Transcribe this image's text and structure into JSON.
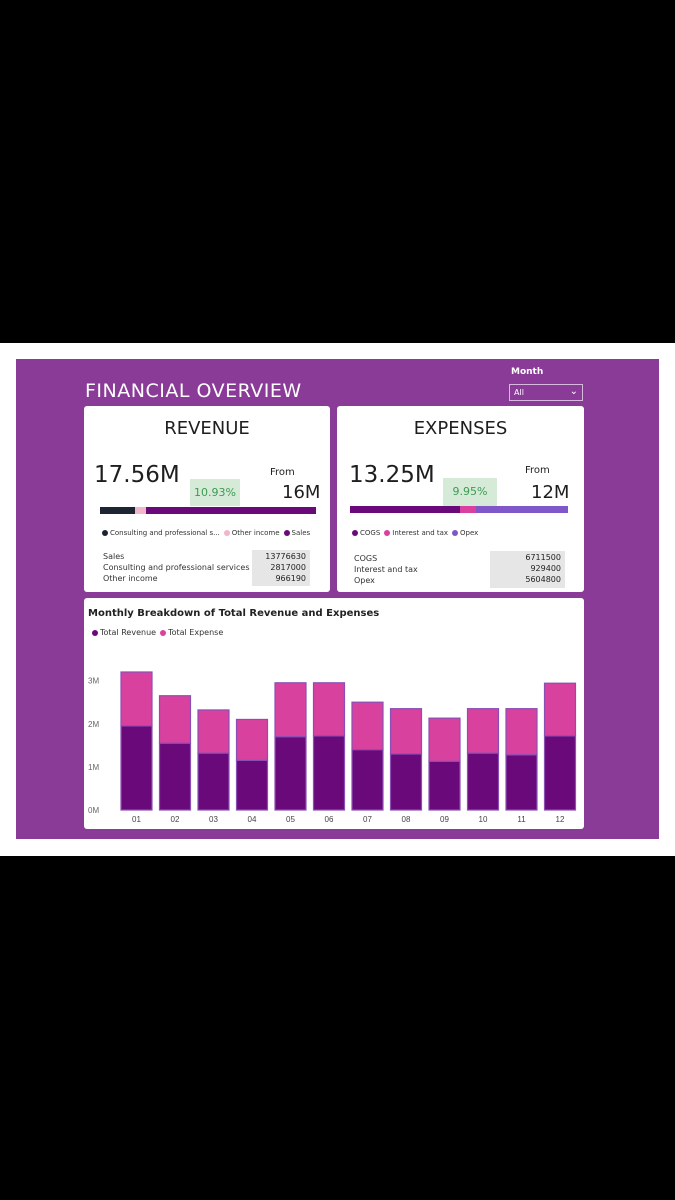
{
  "header": {
    "title": "FINANCIAL OVERVIEW"
  },
  "filter": {
    "label": "Month",
    "value": "All"
  },
  "revenue": {
    "title": "REVENUE",
    "value": "17.56M",
    "change": "10.93%",
    "from_label": "From",
    "from_value": "16M",
    "legend": [
      {
        "label": "Consulting and professional s...",
        "color": "#1e2532"
      },
      {
        "label": "Other income",
        "color": "#f1b6c9"
      },
      {
        "label": "Sales",
        "color": "#6a0a7a"
      }
    ],
    "breakdown": [
      {
        "label": "Sales",
        "value": "13776630"
      },
      {
        "label": "Consulting and professional services",
        "value": "2817000"
      },
      {
        "label": "Other income",
        "value": "966190"
      }
    ],
    "bar_fractions": [
      0.16,
      0.055,
      0.785
    ]
  },
  "expenses": {
    "title": "EXPENSES",
    "value": "13.25M",
    "change": "9.95%",
    "from_label": "From",
    "from_value": "12M",
    "legend": [
      {
        "label": "COGS",
        "color": "#6a0a7a"
      },
      {
        "label": "Interest and tax",
        "color": "#d9419e"
      },
      {
        "label": "Opex",
        "color": "#7f57c8"
      }
    ],
    "breakdown": [
      {
        "label": "COGS",
        "value": "6711500"
      },
      {
        "label": "Interest and tax",
        "value": "929400"
      },
      {
        "label": "Opex",
        "value": "5604800"
      }
    ],
    "bar_fractions": [
      0.506,
      0.07,
      0.424
    ]
  },
  "chart": {
    "title": "Monthly Breakdown of Total Revenue and Expenses",
    "legend": [
      {
        "label": "Total Revenue",
        "color": "#6a0a7a"
      },
      {
        "label": "Total Expense",
        "color": "#d9419e"
      }
    ]
  },
  "chart_data": {
    "type": "bar",
    "stacked": true,
    "title": "Monthly Breakdown of Total Revenue and Expenses",
    "categories": [
      "01",
      "02",
      "03",
      "04",
      "05",
      "06",
      "07",
      "08",
      "09",
      "10",
      "11",
      "12"
    ],
    "series": [
      {
        "name": "Total Revenue",
        "color": "#6a0a7a",
        "values": [
          1.95,
          1.55,
          1.32,
          1.15,
          1.7,
          1.72,
          1.4,
          1.3,
          1.13,
          1.32,
          1.28,
          1.72
        ]
      },
      {
        "name": "Total Expense",
        "color": "#d9419e",
        "values": [
          1.25,
          1.1,
          1.0,
          0.95,
          1.25,
          1.23,
          1.1,
          1.05,
          1.0,
          1.03,
          1.07,
          1.22
        ]
      }
    ],
    "y_ticks": [
      "0M",
      "1M",
      "2M",
      "3M"
    ],
    "ylim": [
      0,
      3.2
    ],
    "grid": false,
    "legend_position": "top-left"
  }
}
